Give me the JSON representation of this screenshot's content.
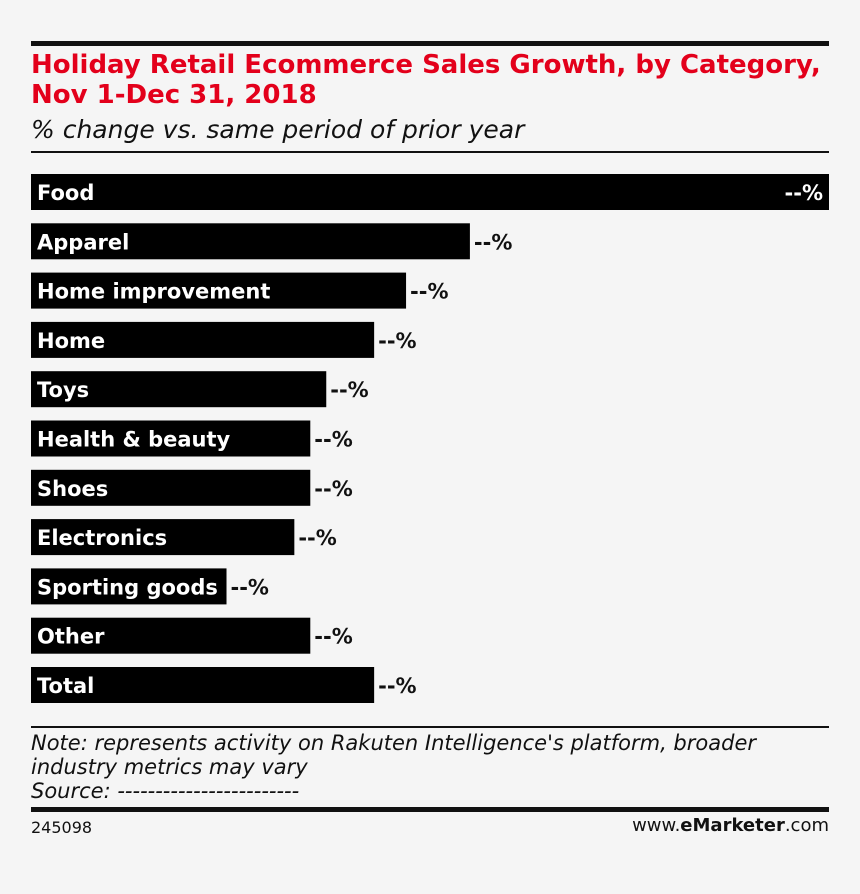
{
  "header": {
    "title": "Holiday Retail Ecommerce Sales Growth, by Category, Nov 1-Dec 31, 2018",
    "subtitle": "% change vs. same period of prior year"
  },
  "chart_data": {
    "type": "bar",
    "orientation": "horizontal",
    "title": "Holiday Retail Ecommerce Sales Growth, by Category, Nov 1-Dec 31, 2018",
    "subtitle": "% change vs. same period of prior year",
    "categories": [
      "Food",
      "Apparel",
      "Home improvement",
      "Home",
      "Toys",
      "Health & beauty",
      "Shoes",
      "Electronics",
      "Sporting goods",
      "Other",
      "Total"
    ],
    "values": [
      100,
      55,
      47,
      43,
      37,
      35,
      35,
      33,
      24.5,
      35,
      43
    ],
    "value_labels": [
      "--%",
      "--%",
      "--%",
      "--%",
      "--%",
      "--%",
      "--%",
      "--%",
      "--%",
      "--%",
      "--%"
    ],
    "xlim": [
      0,
      100
    ],
    "grid": false,
    "legend": "none",
    "bar_color": "#000000"
  },
  "footer": {
    "note_line1": "Note: represents activity on Rakuten Intelligence's platform, broader",
    "note_line2": "industry metrics may vary",
    "source": "Source: ------------------------",
    "chart_id": "245098",
    "brand_prefix": "www.",
    "brand_bold": "eMarketer",
    "brand_suffix": ".com"
  },
  "colors": {
    "title": "#e3001b",
    "bar": "#000000",
    "background": "#f5f5f5"
  }
}
